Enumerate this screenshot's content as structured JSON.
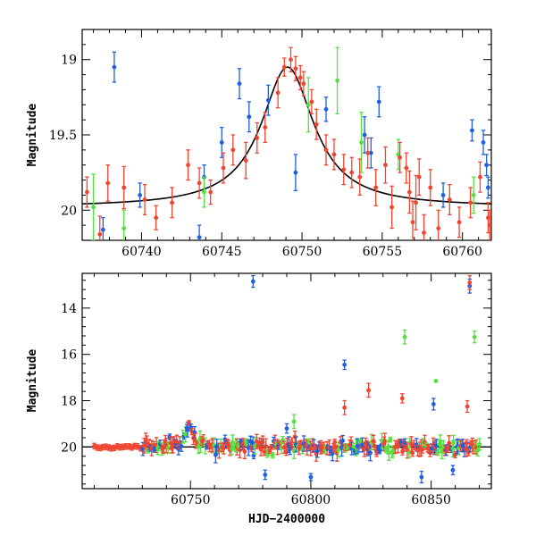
{
  "figure": {
    "xlabel": "HJD−2400000",
    "colors": {
      "blue": "#1f5fe0",
      "red": "#f04530",
      "green": "#55e040",
      "model": "#000000"
    }
  },
  "chart_data": [
    {
      "type": "scatter",
      "panel": "top",
      "ylabel": "Magnitude",
      "xlim": [
        60736.3,
        60761.8
      ],
      "ylim": [
        20.2,
        18.8
      ],
      "inverted_y": true,
      "xticks": [
        60740,
        60745,
        60750,
        60755,
        60760
      ],
      "yticks": [
        19,
        19.5,
        20
      ],
      "ytick_labels": [
        "19",
        "19.5",
        "20"
      ],
      "model": {
        "type": "lorentzian",
        "peak_x": 60749.1,
        "peak_mag": 19.05,
        "base_mag": 19.98,
        "width": 2.0
      },
      "series": [
        {
          "color": "blue",
          "points": [
            [
              60737.6,
              20.13,
              0.08
            ],
            [
              60738.3,
              19.05,
              0.1
            ],
            [
              60739.9,
              19.9,
              0.08
            ],
            [
              60743.6,
              20.18,
              0.08
            ],
            [
              60743.9,
              19.78,
              0.08
            ],
            [
              60745.0,
              19.55,
              0.1
            ],
            [
              60746.1,
              19.16,
              0.1
            ],
            [
              60746.7,
              19.38,
              0.1
            ],
            [
              60747.9,
              19.27,
              0.1
            ],
            [
              60749.6,
              19.75,
              0.12
            ],
            [
              60751.5,
              19.33,
              0.08
            ],
            [
              60753.9,
              19.5,
              0.12
            ],
            [
              60754.3,
              19.62,
              0.1
            ],
            [
              60754.8,
              19.28,
              0.1
            ],
            [
              60758.8,
              19.9,
              0.08
            ],
            [
              60760.6,
              19.47,
              0.07
            ],
            [
              60761.3,
              19.55,
              0.08
            ],
            [
              60761.5,
              19.7,
              0.07
            ],
            [
              60761.6,
              19.85,
              0.07
            ]
          ]
        },
        {
          "color": "green",
          "points": [
            [
              60737.0,
              19.98,
              0.22
            ],
            [
              60738.9,
              20.12,
              0.12
            ],
            [
              60743.9,
              19.88,
              0.1
            ],
            [
              60750.4,
              19.3,
              0.18
            ],
            [
              60752.2,
              19.14,
              0.22
            ],
            [
              60753.7,
              19.55,
              0.2
            ],
            [
              60756.0,
              19.63,
              0.1
            ],
            [
              60760.7,
              19.9,
              0.12
            ]
          ]
        },
        {
          "color": "red",
          "points": [
            [
              60736.6,
              19.88,
              0.1
            ],
            [
              60737.4,
              20.16,
              0.12
            ],
            [
              60737.9,
              19.82,
              0.12
            ],
            [
              60738.9,
              19.85,
              0.14
            ],
            [
              60740.2,
              19.93,
              0.1
            ],
            [
              60740.9,
              20.05,
              0.08
            ],
            [
              60741.9,
              19.95,
              0.1
            ],
            [
              60742.9,
              19.7,
              0.1
            ],
            [
              60743.6,
              19.82,
              0.1
            ],
            [
              60744.3,
              19.88,
              0.08
            ],
            [
              60745.1,
              19.72,
              0.1
            ],
            [
              60745.7,
              19.6,
              0.1
            ],
            [
              60746.5,
              19.67,
              0.12
            ],
            [
              60747.2,
              19.52,
              0.1
            ],
            [
              60747.7,
              19.45,
              0.1
            ],
            [
              60748.5,
              19.22,
              0.1
            ],
            [
              60748.9,
              19.05,
              0.06
            ],
            [
              60749.3,
              19.0,
              0.08
            ],
            [
              60749.6,
              19.06,
              0.08
            ],
            [
              60749.9,
              19.12,
              0.08
            ],
            [
              60750.1,
              19.16,
              0.08
            ],
            [
              60750.6,
              19.28,
              0.08
            ],
            [
              60750.9,
              19.43,
              0.1
            ],
            [
              60751.5,
              19.6,
              0.1
            ],
            [
              60752.0,
              19.63,
              0.1
            ],
            [
              60752.6,
              19.73,
              0.1
            ],
            [
              60753.1,
              19.75,
              0.1
            ],
            [
              60753.6,
              19.78,
              0.12
            ],
            [
              60754.1,
              19.62,
              0.1
            ],
            [
              60754.6,
              19.85,
              0.12
            ],
            [
              60755.2,
              19.7,
              0.12
            ],
            [
              60755.6,
              19.98,
              0.14
            ],
            [
              60756.1,
              19.65,
              0.1
            ],
            [
              60756.5,
              19.72,
              0.1
            ],
            [
              60756.7,
              19.88,
              0.14
            ],
            [
              60756.9,
              20.08,
              0.14
            ],
            [
              60757.1,
              19.95,
              0.18
            ],
            [
              60757.3,
              19.78,
              0.12
            ],
            [
              60757.6,
              20.15,
              0.12
            ],
            [
              60758.0,
              19.85,
              0.12
            ],
            [
              60758.5,
              20.12,
              0.12
            ],
            [
              60759.2,
              19.93,
              0.1
            ],
            [
              60759.8,
              20.08,
              0.1
            ],
            [
              60760.5,
              19.95,
              0.1
            ],
            [
              60761.1,
              19.78,
              0.1
            ],
            [
              60761.6,
              20.05,
              0.1
            ],
            [
              60761.7,
              20.1,
              0.1
            ]
          ]
        }
      ]
    },
    {
      "type": "scatter",
      "panel": "bottom",
      "ylabel": "Magnitude",
      "xlabel": "HJD−2400000",
      "xlim": [
        60705,
        60875
      ],
      "ylim": [
        21.8,
        12.5
      ],
      "inverted_y": true,
      "xticks": [
        60750,
        60800,
        60850
      ],
      "yticks": [
        14,
        16,
        18,
        20
      ],
      "ytick_labels": [
        "14",
        "16",
        "18",
        "20"
      ],
      "baseline_mag": 20.0,
      "outliers": [
        {
          "color": "blue",
          "x": 60776,
          "y": 12.85,
          "err": 0.25
        },
        {
          "color": "blue",
          "x": 60814,
          "y": 16.45,
          "err": 0.2
        },
        {
          "color": "blue",
          "x": 60851,
          "y": 18.15,
          "err": 0.25
        },
        {
          "color": "blue",
          "x": 60866,
          "y": 13.05,
          "err": 0.3
        },
        {
          "color": "blue",
          "x": 60790,
          "y": 19.2,
          "err": 0.2
        },
        {
          "color": "blue",
          "x": 60781,
          "y": 21.2,
          "err": 0.2
        },
        {
          "color": "blue",
          "x": 60800,
          "y": 21.3,
          "err": 0.15
        },
        {
          "color": "blue",
          "x": 60846,
          "y": 21.3,
          "err": 0.25
        },
        {
          "color": "blue",
          "x": 60859,
          "y": 21.0,
          "err": 0.2
        },
        {
          "color": "red",
          "x": 60866,
          "y": 12.9,
          "err": 0.3
        },
        {
          "color": "red",
          "x": 60814,
          "y": 18.3,
          "err": 0.3
        },
        {
          "color": "red",
          "x": 60824,
          "y": 17.55,
          "err": 0.3
        },
        {
          "color": "red",
          "x": 60838,
          "y": 17.9,
          "err": 0.2
        },
        {
          "color": "red",
          "x": 60865,
          "y": 18.25,
          "err": 0.25
        },
        {
          "color": "green",
          "x": 60839,
          "y": 15.25,
          "err": 0.3
        },
        {
          "color": "green",
          "x": 60868,
          "y": 15.25,
          "err": 0.25
        },
        {
          "color": "green",
          "x": 60852,
          "y": 17.15,
          "err": 0.05
        },
        {
          "color": "green",
          "x": 60793,
          "y": 18.9,
          "err": 0.3
        }
      ]
    }
  ]
}
